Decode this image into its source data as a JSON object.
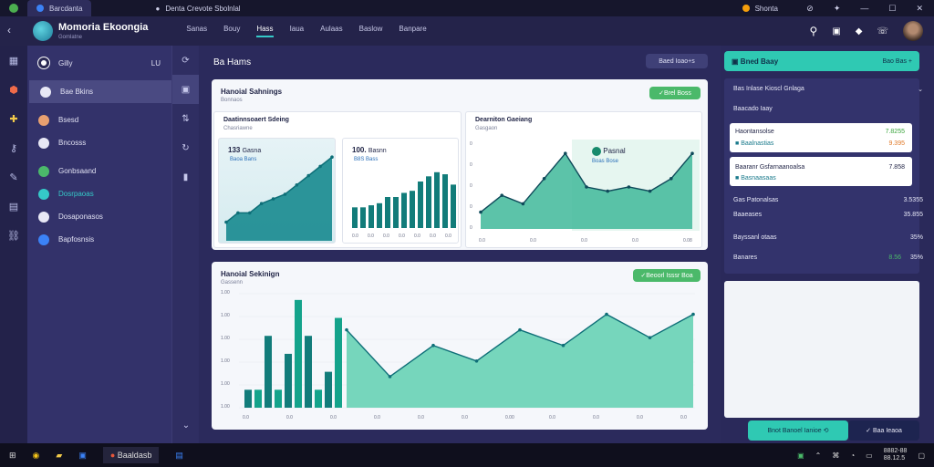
{
  "browser": {
    "tabs": [
      {
        "label": "Barcdanta",
        "active": true
      },
      {
        "label": "Denta Crevote Sbolnlal"
      },
      {
        "label": "Shonta"
      }
    ],
    "controls": [
      "—",
      "☐",
      "✕"
    ]
  },
  "app": {
    "title": "Momoria Ekoongia",
    "subtitle": "Gomlatne",
    "nav": [
      "Sanas",
      "Bouy",
      "Hass",
      "Iaua",
      "Aulaas",
      "Baslow",
      "Banpare"
    ],
    "nav_active_index": 2
  },
  "sidebar": {
    "header": {
      "label": "Gilly",
      "badge": "LU"
    },
    "items": [
      {
        "label": "Bae Bkins",
        "selected": true
      },
      {
        "label": "Bsesd"
      },
      {
        "label": "Bncosss"
      },
      {
        "label": "Gonbsaand"
      },
      {
        "label": "Dosrpaoas"
      },
      {
        "label": "Dosaponasos"
      },
      {
        "label": "Bapfosnsis"
      }
    ]
  },
  "main": {
    "title": "Ba Hams",
    "action_button": "Baed Ioao+s",
    "card1": {
      "title": "Hanoial Sahnings",
      "subtitle": "Bonnaos",
      "badge": "Brel Boss",
      "left_panel": {
        "title": "Daatinnsoaert Sdeing",
        "subtitle": "Chasriawne",
        "mini1": {
          "value": "133",
          "label": "Gasna",
          "sub": "Baoa Bans"
        },
        "mini2": {
          "value": "100.",
          "label": "Basnn",
          "sub": "B8S Bass"
        }
      },
      "right_panel": {
        "title": "Dearniton Gaeiang",
        "subtitle": "Gasgaon",
        "metric_label": "Pasnal",
        "metric_sub": "Boas Bose"
      }
    },
    "card2": {
      "title": "Hanoial Sekinign",
      "subtitle": "Gassenn",
      "badge": "Beoorl Isssr Boa"
    }
  },
  "chart_data": [
    {
      "type": "area",
      "series": [
        {
          "values": [
            2,
            3,
            3,
            4,
            4.5,
            5,
            6,
            7,
            8,
            9
          ]
        }
      ]
    },
    {
      "type": "bar",
      "series": [
        {
          "values": [
            2,
            2,
            2.2,
            2.4,
            3,
            3,
            3.4,
            3.6,
            4.5,
            5,
            5.4,
            5.2,
            4.2
          ]
        }
      ]
    },
    {
      "type": "area",
      "x_ticks": [
        "0.0",
        "0.0",
        "0.0",
        "0.0",
        "0.08"
      ],
      "series": [
        {
          "values": [
            2,
            4,
            3,
            6,
            9,
            5,
            4.5,
            5,
            4.5,
            6,
            9
          ]
        }
      ]
    },
    {
      "type": "bar",
      "y_ticks": [
        "1.00",
        "1.00",
        "1.00",
        "1.00",
        "1.00",
        "1.00"
      ],
      "x_ticks": [
        "0.0",
        "0.0",
        "0.0",
        "0.0",
        "0.0",
        "0.0",
        "0.00",
        "0.0",
        "0.0",
        "0.0",
        "0.0"
      ],
      "series": [
        {
          "name": "bars",
          "values": [
            1,
            1,
            4,
            1,
            3,
            6,
            4,
            1,
            2,
            5
          ]
        },
        {
          "name": "line",
          "values": [
            5,
            2,
            4,
            3,
            5,
            4,
            6,
            4.5,
            6
          ]
        }
      ]
    }
  ],
  "right_panel": {
    "button": "Bned Baay",
    "button_extra": "Bao Bas +",
    "header": "Bas Inlase Kioscl Gnlaga",
    "section": "Baacado Iaay",
    "highlight_rows": [
      {
        "label": "Haontansolse",
        "value": "7.8255",
        "sub_label": "Baalnastias",
        "sub_value": "9.395"
      },
      {
        "label": "Baaranr Gsfarnaanoalsa",
        "value": "7.858",
        "sub": "Basnaasaas"
      }
    ],
    "rows": [
      {
        "label": "Gas Patonalsas",
        "value": "3.5355"
      },
      {
        "label": "Baaeases",
        "value": "35.855"
      },
      {
        "label": "Bayssanl otaas",
        "value": "35%"
      },
      {
        "label": "Banares",
        "value": "8.56",
        "extra": "35%"
      }
    ],
    "btn_primary": "Bnot Banoel Ianioe",
    "btn_secondary": "Baa Ieaoa"
  },
  "taskbar": {
    "app_label": "Baaldasb",
    "clock": "8882-88",
    "date": "88.12.5"
  },
  "colors": {
    "accent": "#35c9c8",
    "green": "#4bb96a",
    "bg": "#2b2a55",
    "chart": "#17898f"
  }
}
